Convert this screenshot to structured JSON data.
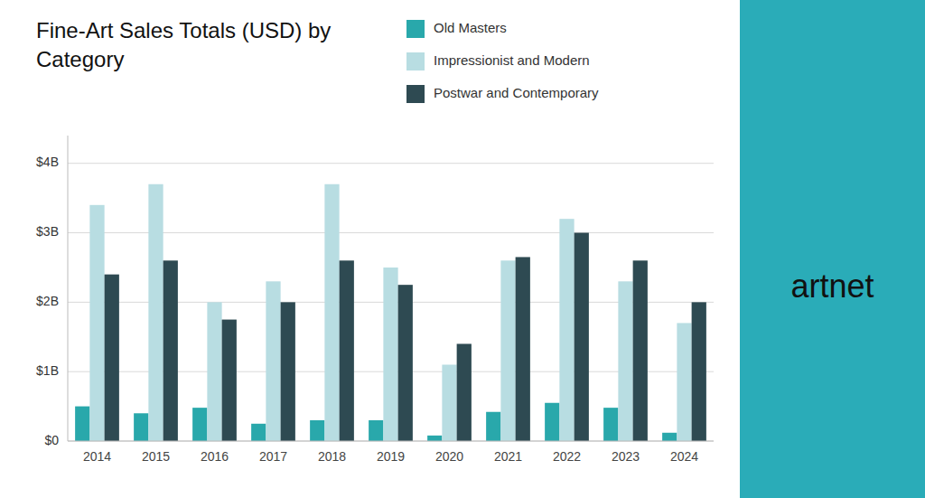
{
  "chart_data": {
    "type": "bar",
    "title": "Fine-Art Sales Totals (USD) by\nCategory",
    "categories": [
      "2014",
      "2015",
      "2016",
      "2017",
      "2018",
      "2019",
      "2020",
      "2021",
      "2022",
      "2023",
      "2024"
    ],
    "series": [
      {
        "name": "Old Masters",
        "color": "#29a8ab",
        "values": [
          0.5,
          0.4,
          0.48,
          0.25,
          0.3,
          0.3,
          0.08,
          0.42,
          0.55,
          0.48,
          0.12
        ]
      },
      {
        "name": "Impressionist and Modern",
        "color": "#b8dde2",
        "values": [
          3.4,
          3.7,
          2.0,
          2.3,
          3.7,
          2.5,
          1.1,
          2.6,
          3.2,
          2.3,
          1.7
        ]
      },
      {
        "name": "Postwar and Contemporary",
        "color": "#2e4a52",
        "values": [
          2.4,
          2.6,
          1.75,
          2.0,
          2.6,
          2.25,
          1.4,
          2.65,
          3.0,
          2.6,
          2.0
        ]
      }
    ],
    "ylim": [
      0,
      4.4
    ],
    "yticks": [
      {
        "value": 0,
        "label": "$0"
      },
      {
        "value": 1,
        "label": "$1B"
      },
      {
        "value": 2,
        "label": "$2B"
      },
      {
        "value": 3,
        "label": "$3B"
      },
      {
        "value": 4,
        "label": "$4B"
      }
    ],
    "grid": true,
    "legend": "top",
    "annotations": [
      {
        "text": "artnet"
      }
    ]
  }
}
